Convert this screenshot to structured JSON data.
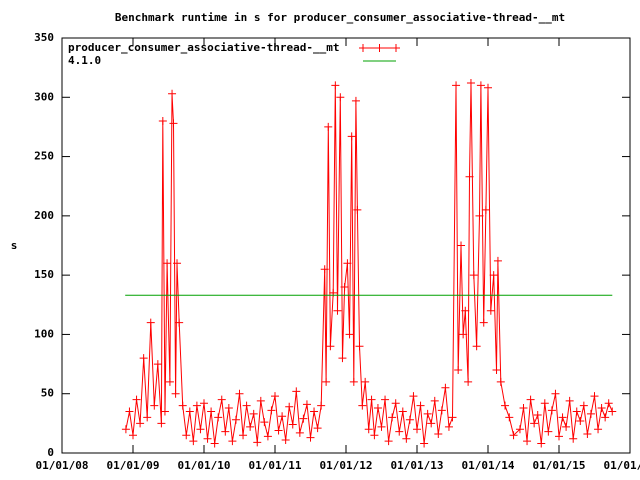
{
  "chart_data": {
    "type": "line",
    "title": "Benchmark runtime in s for producer_consumer_associative-thread-__mt",
    "y_label": "s",
    "xlim": [
      2008,
      2016
    ],
    "ylim": [
      0,
      350
    ],
    "xticks": [
      {
        "value": 2008,
        "label": "01/01/08"
      },
      {
        "value": 2009,
        "label": "01/01/09"
      },
      {
        "value": 2010,
        "label": "01/01/10"
      },
      {
        "value": 2011,
        "label": "01/01/11"
      },
      {
        "value": 2012,
        "label": "01/01/12"
      },
      {
        "value": 2013,
        "label": "01/01/13"
      },
      {
        "value": 2014,
        "label": "01/01/14"
      },
      {
        "value": 2015,
        "label": "01/01/15"
      },
      {
        "value": 2016,
        "label": "01/01/16"
      }
    ],
    "yticks": [
      0,
      50,
      100,
      150,
      200,
      250,
      300,
      350
    ],
    "legend": "top-left",
    "series": [
      {
        "name": "producer_consumer_associative-thread-__mt",
        "color": "#ff0000",
        "markers": true,
        "x": [
          2008.9,
          2008.95,
          2009,
          2009.05,
          2009.1,
          2009.15,
          2009.2,
          2009.25,
          2009.3,
          2009.35,
          2009.4,
          2009.42,
          2009.45,
          2009.48,
          2009.52,
          2009.55,
          2009.57,
          2009.6,
          2009.62,
          2009.65,
          2009.7,
          2009.75,
          2009.8,
          2009.85,
          2009.9,
          2009.95,
          2010,
          2010.05,
          2010.1,
          2010.15,
          2010.2,
          2010.25,
          2010.3,
          2010.35,
          2010.4,
          2010.45,
          2010.5,
          2010.55,
          2010.6,
          2010.65,
          2010.7,
          2010.75,
          2010.8,
          2010.85,
          2010.9,
          2010.95,
          2011,
          2011.05,
          2011.1,
          2011.15,
          2011.2,
          2011.25,
          2011.3,
          2011.35,
          2011.4,
          2011.45,
          2011.5,
          2011.55,
          2011.6,
          2011.65,
          2011.7,
          2011.72,
          2011.75,
          2011.78,
          2011.82,
          2011.85,
          2011.88,
          2011.92,
          2011.95,
          2011.98,
          2012.02,
          2012.05,
          2012.08,
          2012.11,
          2012.14,
          2012.16,
          2012.19,
          2012.23,
          2012.27,
          2012.32,
          2012.36,
          2012.4,
          2012.45,
          2012.5,
          2012.55,
          2012.6,
          2012.65,
          2012.7,
          2012.75,
          2012.8,
          2012.85,
          2012.9,
          2012.95,
          2013,
          2013.05,
          2013.1,
          2013.15,
          2013.2,
          2013.25,
          2013.3,
          2013.35,
          2013.4,
          2013.45,
          2013.5,
          2013.55,
          2013.58,
          2013.62,
          2013.65,
          2013.68,
          2013.72,
          2013.74,
          2013.76,
          2013.8,
          2013.84,
          2013.88,
          2013.9,
          2013.94,
          2013.97,
          2014,
          2014.04,
          2014.08,
          2014.12,
          2014.14,
          2014.18,
          2014.24,
          2014.3,
          2014.36,
          2014.45,
          2014.5,
          2014.55,
          2014.6,
          2014.65,
          2014.7,
          2014.75,
          2014.8,
          2014.85,
          2014.9,
          2014.95,
          2015,
          2015.05,
          2015.1,
          2015.15,
          2015.2,
          2015.25,
          2015.3,
          2015.35,
          2015.4,
          2015.45,
          2015.5,
          2015.55,
          2015.6,
          2015.65,
          2015.7,
          2015.75
        ],
        "values": [
          20,
          35,
          15,
          45,
          25,
          80,
          30,
          110,
          40,
          75,
          25,
          280,
          35,
          160,
          60,
          303,
          278,
          50,
          160,
          110,
          40,
          15,
          35,
          10,
          40,
          20,
          42,
          12,
          35,
          8,
          30,
          45,
          18,
          38,
          10,
          28,
          50,
          15,
          40,
          22,
          33,
          9,
          44,
          26,
          14,
          36,
          48,
          19,
          31,
          11,
          39,
          24,
          52,
          17,
          29,
          41,
          13,
          35,
          21,
          40,
          155,
          60,
          275,
          90,
          135,
          310,
          120,
          300,
          80,
          140,
          160,
          100,
          267,
          60,
          297,
          205,
          90,
          40,
          60,
          20,
          45,
          15,
          38,
          22,
          45,
          10,
          30,
          42,
          18,
          35,
          12,
          28,
          48,
          20,
          40,
          8,
          33,
          25,
          44,
          16,
          36,
          55,
          22,
          30,
          310,
          70,
          175,
          100,
          120,
          60,
          233,
          312,
          150,
          90,
          200,
          310,
          110,
          205,
          308,
          120,
          150,
          70,
          162,
          60,
          40,
          30,
          15,
          20,
          38,
          10,
          45,
          25,
          32,
          8,
          42,
          18,
          36,
          50,
          14,
          30,
          22,
          44,
          12,
          35,
          27,
          40,
          16,
          33,
          48,
          20,
          38,
          30,
          42,
          35
        ]
      },
      {
        "name": "4.1.0",
        "color": "#00a000",
        "markers": false,
        "x": [
          2008.89,
          2015.75
        ],
        "values": [
          133,
          133
        ]
      }
    ]
  }
}
